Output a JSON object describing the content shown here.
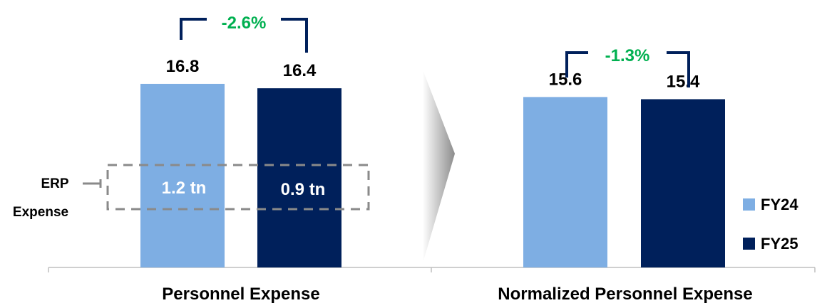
{
  "chart_data": {
    "type": "bar",
    "categories": [
      "Personnel Expense",
      "Normalized Personnel Expense"
    ],
    "series": [
      {
        "name": "FY24",
        "values": [
          16.8,
          15.6
        ],
        "color": "#7eaee3"
      },
      {
        "name": "FY25",
        "values": [
          16.4,
          15.4
        ],
        "color": "#00205b"
      }
    ],
    "data_labels": [
      [
        "16.8",
        "16.4"
      ],
      [
        "15.6",
        "15.4"
      ]
    ],
    "changes": [
      {
        "label": "-2.6%",
        "color": "#00b050"
      },
      {
        "label": "-1.3%",
        "color": "#00b050"
      }
    ],
    "erp": {
      "label_line1": "ERP",
      "label_line2": "Expense",
      "fy24_label": "1.2 tn",
      "fy25_label": "0.9 tn"
    },
    "legend": {
      "items": [
        "FY24",
        "FY25"
      ],
      "position": "bottom-right"
    },
    "grid": false,
    "ylim": [
      0,
      20
    ]
  }
}
